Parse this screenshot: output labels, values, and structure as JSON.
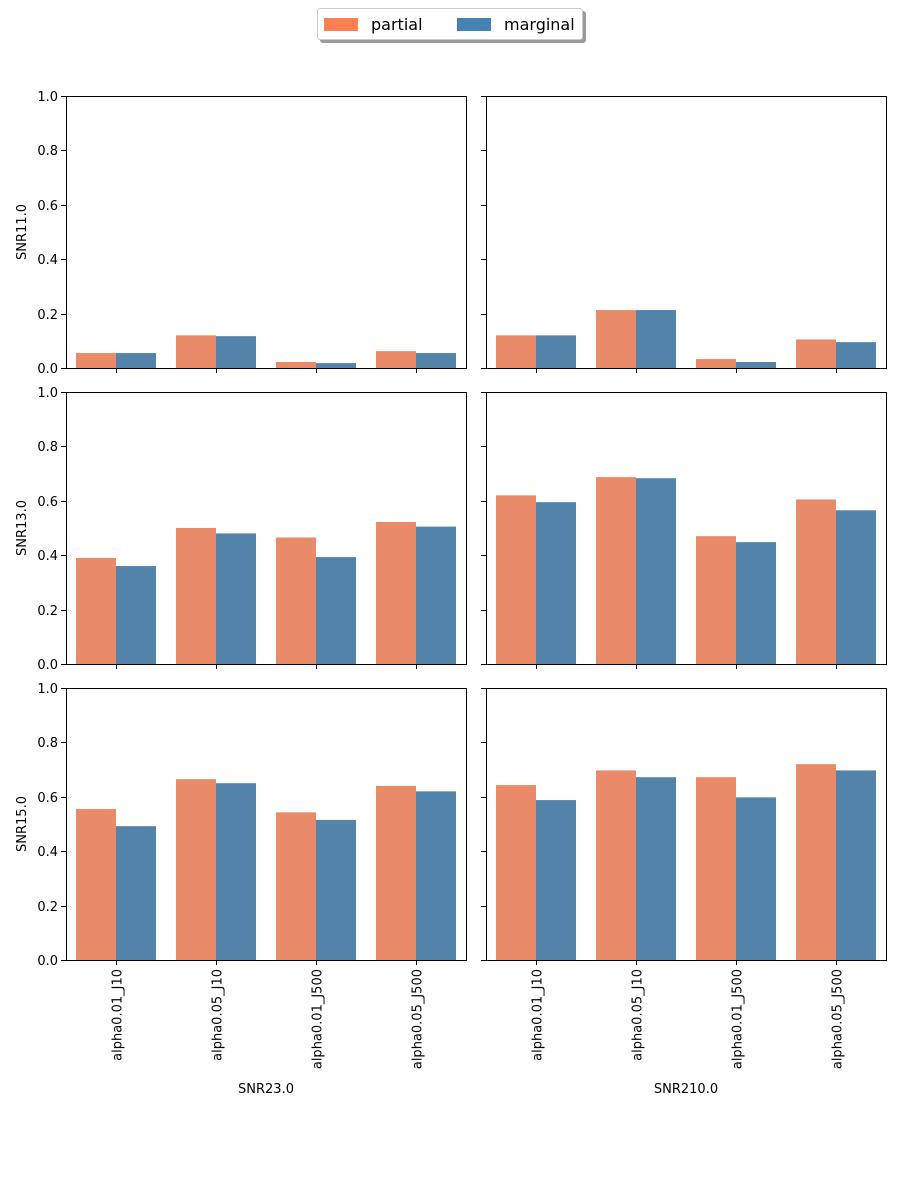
{
  "legend": {
    "items": [
      {
        "label": "partial",
        "color": "#ff7f50"
      },
      {
        "label": "marginal",
        "color": "#4682b4"
      }
    ]
  },
  "colors": {
    "partial": "#e98a68",
    "marginal": "#5383a8"
  },
  "chart_data": {
    "type": "bar",
    "layout": "facet grid, 3 rows x 2 columns, shared y axis",
    "series_names": [
      "partial",
      "marginal"
    ],
    "categories": [
      "alpha0.01_J10",
      "alpha0.05_J10",
      "alpha0.01_J500",
      "alpha0.05_J500"
    ],
    "ylim": [
      0,
      1.0
    ],
    "yticks": [
      "0.0",
      "0.2",
      "0.4",
      "0.6",
      "0.8",
      "1.0"
    ],
    "row_labels": [
      "SNR11.0",
      "SNR13.0",
      "SNR15.0"
    ],
    "col_labels": [
      "SNR23.0",
      "SNR210.0"
    ],
    "panels": [
      {
        "row": 0,
        "col": 0,
        "ylabel": "SNR11.0",
        "xlabel": "",
        "series": [
          {
            "name": "partial",
            "values": [
              0.055,
              0.12,
              0.022,
              0.062
            ]
          },
          {
            "name": "marginal",
            "values": [
              0.055,
              0.117,
              0.018,
              0.055
            ]
          }
        ]
      },
      {
        "row": 0,
        "col": 1,
        "ylabel": "",
        "xlabel": "",
        "series": [
          {
            "name": "partial",
            "values": [
              0.12,
              0.213,
              0.033,
              0.105
            ]
          },
          {
            "name": "marginal",
            "values": [
              0.12,
              0.213,
              0.022,
              0.095
            ]
          }
        ]
      },
      {
        "row": 1,
        "col": 0,
        "ylabel": "SNR13.0",
        "xlabel": "",
        "series": [
          {
            "name": "partial",
            "values": [
              0.39,
              0.5,
              0.465,
              0.522
            ]
          },
          {
            "name": "marginal",
            "values": [
              0.36,
              0.48,
              0.393,
              0.505
            ]
          }
        ]
      },
      {
        "row": 1,
        "col": 1,
        "ylabel": "",
        "xlabel": "",
        "series": [
          {
            "name": "partial",
            "values": [
              0.62,
              0.687,
              0.47,
              0.605
            ]
          },
          {
            "name": "marginal",
            "values": [
              0.595,
              0.683,
              0.448,
              0.565
            ]
          }
        ]
      },
      {
        "row": 2,
        "col": 0,
        "ylabel": "SNR15.0",
        "xlabel": "SNR23.0",
        "series": [
          {
            "name": "partial",
            "values": [
              0.555,
              0.665,
              0.543,
              0.64
            ]
          },
          {
            "name": "marginal",
            "values": [
              0.492,
              0.65,
              0.515,
              0.62
            ]
          }
        ]
      },
      {
        "row": 2,
        "col": 1,
        "ylabel": "",
        "xlabel": "SNR210.0",
        "series": [
          {
            "name": "partial",
            "values": [
              0.643,
              0.697,
              0.672,
              0.72
            ]
          },
          {
            "name": "marginal",
            "values": [
              0.588,
              0.672,
              0.598,
              0.697
            ]
          }
        ]
      }
    ]
  }
}
